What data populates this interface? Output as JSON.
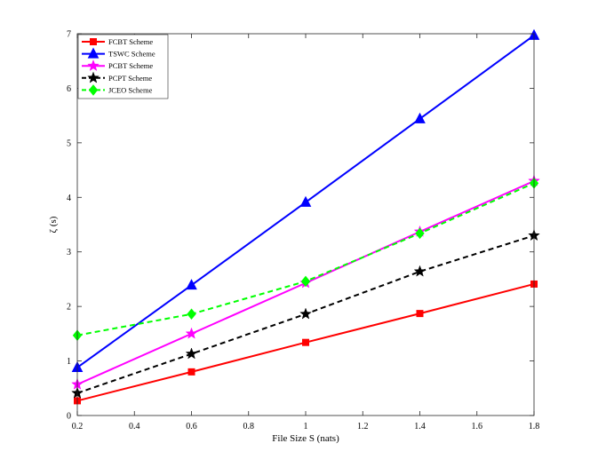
{
  "chart_data": {
    "type": "line",
    "title": "",
    "xlabel": "File Size S (nats)",
    "ylabel": "ζ (s)",
    "xlim": [
      0.2,
      1.8
    ],
    "ylim": [
      0,
      7
    ],
    "xticks": [
      0.2,
      0.4,
      0.6,
      0.8,
      1,
      1.2,
      1.4,
      1.6,
      1.8
    ],
    "xtick_labels": [
      "0.2",
      "0.4",
      "0.6",
      "0.8",
      "1",
      "1.2",
      "1.4",
      "1.6",
      "1.8"
    ],
    "yticks": [
      0,
      1,
      2,
      3,
      4,
      5,
      6,
      7
    ],
    "ytick_labels": [
      "0",
      "1",
      "2",
      "3",
      "4",
      "5",
      "6",
      "7"
    ],
    "grid": false,
    "legend_position": "top-left",
    "x": [
      0.2,
      0.6,
      1.0,
      1.4,
      1.8
    ],
    "series": [
      {
        "name": "FCBT Scheme",
        "values": [
          0.27,
          0.8,
          1.34,
          1.87,
          2.41
        ],
        "color": "#ff0000",
        "marker": "square",
        "dash": "solid"
      },
      {
        "name": "TSWC Scheme",
        "values": [
          0.88,
          2.39,
          3.91,
          5.44,
          6.97
        ],
        "color": "#0000ff",
        "marker": "triangle",
        "dash": "solid"
      },
      {
        "name": "PCBT Scheme",
        "values": [
          0.57,
          1.5,
          2.43,
          3.37,
          4.3
        ],
        "color": "#ff00ff",
        "marker": "star",
        "dash": "solid"
      },
      {
        "name": "PCPT Scheme",
        "values": [
          0.41,
          1.13,
          1.86,
          2.64,
          3.3
        ],
        "color": "#000000",
        "marker": "star",
        "dash": "dashed"
      },
      {
        "name": "JCEO Scheme",
        "values": [
          1.47,
          1.86,
          2.46,
          3.34,
          4.26
        ],
        "color": "#00ff00",
        "marker": "diamond",
        "dash": "dashed"
      }
    ]
  }
}
